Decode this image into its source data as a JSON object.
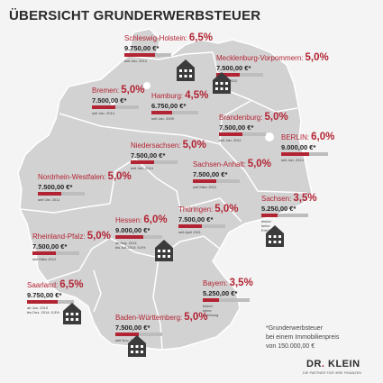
{
  "title": "ÜBERSICHT GRUNDERWERBSTEUER",
  "states": [
    {
      "key": "sh",
      "name": "Schleswig-Holstein:",
      "rate": "6,5%",
      "amount": "9.750,00 €*",
      "since": [
        "seit Jan. 2014"
      ],
      "fill": 0.65
    },
    {
      "key": "mv",
      "name": "Mecklenburg-Vorpommern:",
      "rate": "5,0%",
      "amount": "7.500,00 €*",
      "since": [
        "seit Juli 2012"
      ],
      "fill": 0.5
    },
    {
      "key": "hb",
      "name": "Bremen:",
      "rate": "5,0%",
      "amount": "7.500,00 €*",
      "since": [
        "seit Jan. 2014"
      ],
      "fill": 0.5
    },
    {
      "key": "hh",
      "name": "Hamburg:",
      "rate": "4,5%",
      "amount": "6.750,00 €*",
      "since": [
        "seit Jan. 2009"
      ],
      "fill": 0.45
    },
    {
      "key": "bb",
      "name": "Brandenburg:",
      "rate": "5,0%",
      "amount": "7.500,00 €*",
      "since": [
        "seit Jan. 2011"
      ],
      "fill": 0.5
    },
    {
      "key": "be",
      "name": "BERLIN:",
      "rate": "6,0%",
      "amount": "9.000,00 €*",
      "since": [
        "seit Jan. 2014"
      ],
      "fill": 0.6
    },
    {
      "key": "ni",
      "name": "Niedersachsen:",
      "rate": "5,0%",
      "amount": "7.500,00 €*",
      "since": [
        "seit Jan. 2014"
      ],
      "fill": 0.5
    },
    {
      "key": "st",
      "name": "Sachsen-Anhalt:",
      "rate": "5,0%",
      "amount": "7.500,00 €*",
      "since": [
        "seit März 2012"
      ],
      "fill": 0.5
    },
    {
      "key": "nw",
      "name": "Nordrhein-Westfalen:",
      "rate": "5,0%",
      "amount": "7.500,00 €*",
      "since": [
        "seit Okt. 2011"
      ],
      "fill": 0.5
    },
    {
      "key": "sn",
      "name": "Sachsen:",
      "rate": "3,5%",
      "amount": "5.250,00 €*",
      "since": [
        "bisher",
        "keine",
        "Erhöhung"
      ],
      "fill": 0.35
    },
    {
      "key": "he",
      "name": "Hessen:",
      "rate": "6,0%",
      "amount": "9.000,00 €*",
      "since": [
        "ab Aug. 2014",
        "bis Juli 2014: 5,0%"
      ],
      "fill": 0.6
    },
    {
      "key": "th",
      "name": "Thüringen:",
      "rate": "5,0%",
      "amount": "7.500,00 €*",
      "since": [
        "seit April 2011"
      ],
      "fill": 0.5
    },
    {
      "key": "rp",
      "name": "Rheinland-Pfalz:",
      "rate": "5,0%",
      "amount": "7.500,00 €*",
      "since": [
        "seit März 2012"
      ],
      "fill": 0.5
    },
    {
      "key": "sl",
      "name": "Saarland:",
      "rate": "6,5%",
      "amount": "9.750,00 €*",
      "since": [
        "ab Jan. 2015",
        "bis Dez. 2014: 5,5%"
      ],
      "fill": 0.65
    },
    {
      "key": "by",
      "name": "Bayern:",
      "rate": "3,5%",
      "amount": "5.250,00 €*",
      "since": [
        "bisher",
        "keine",
        "Erhöhung"
      ],
      "fill": 0.35
    },
    {
      "key": "bw",
      "name": "Baden-Württemberg:",
      "rate": "5,0%",
      "amount": "7.500,00 €*",
      "since": [
        "seit Nov. 2011"
      ],
      "fill": 0.5
    }
  ],
  "footnote": [
    "*Grunderwerbsteuer",
    "bei einem Immobilienpreis",
    "von 150.000,00 €"
  ],
  "logo": {
    "left": "DR",
    "dot": ".",
    "right": " KLEIN"
  },
  "tagline": "DIE PARTNER FÜR IHRE FINANZEN",
  "colors": {
    "accent": "#b22433",
    "map": "#d2d2d2",
    "border": "#ffffff",
    "house": "#3b3b3b",
    "background": "#f4f4f4"
  }
}
